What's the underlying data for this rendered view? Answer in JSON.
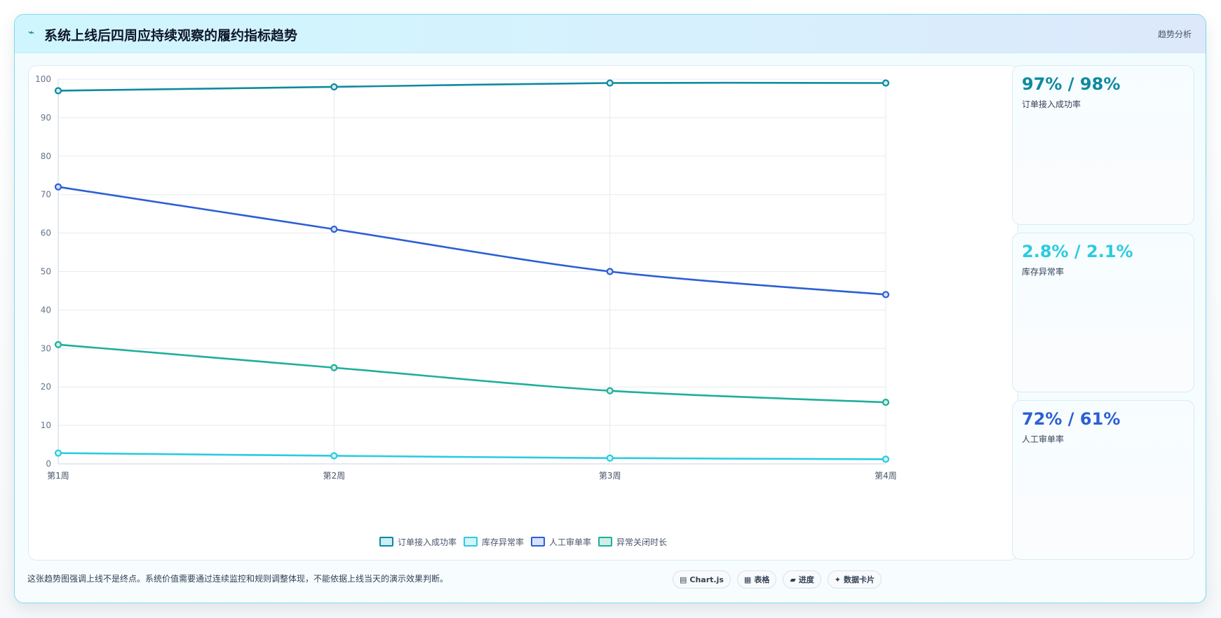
{
  "header": {
    "icon": "pulse-icon",
    "title": "系统上线后四周应持续观察的履约指标趋势",
    "tag": "趋势分析"
  },
  "chart_data": {
    "type": "line",
    "categories": [
      "第1周",
      "第2周",
      "第3周",
      "第4周"
    ],
    "ylim": [
      0,
      100
    ],
    "yticks": [
      0,
      10,
      20,
      30,
      40,
      50,
      60,
      70,
      80,
      90,
      100
    ],
    "grid": true,
    "legend_position": "bottom",
    "series": [
      {
        "name": "订单接入成功率",
        "color": "#0e8a9e",
        "fill": "#cdeef3",
        "values": [
          97,
          98,
          99,
          99
        ]
      },
      {
        "name": "库存异常率",
        "color": "#2ccbe0",
        "fill": "#d2f5fa",
        "values": [
          2.8,
          2.1,
          1.5,
          1.2
        ]
      },
      {
        "name": "人工审单率",
        "color": "#2d5fd4",
        "fill": "#d8e2f8",
        "values": [
          72,
          61,
          50,
          44
        ]
      },
      {
        "name": "异常关闭时长",
        "color": "#1fae9b",
        "fill": "#cfeee9",
        "values": [
          31,
          25,
          19,
          16
        ]
      }
    ]
  },
  "stats": [
    {
      "value": "97% / 98%",
      "label": "订单接入成功率",
      "color": "#0e8a9e"
    },
    {
      "value": "2.8% / 2.1%",
      "label": "库存异常率",
      "color": "#2ccbe0"
    },
    {
      "value": "72% / 61%",
      "label": "人工审单率",
      "color": "#2d5fd4"
    }
  ],
  "footnote": "这张趋势图强调上线不是终点。系统价值需要通过连续监控和规则调整体现，不能依据上线当天的演示效果判断。",
  "chips": [
    {
      "icon": "chart-icon",
      "glyph": "▤",
      "label": "Chart.js"
    },
    {
      "icon": "table-icon",
      "glyph": "▦",
      "label": "表格"
    },
    {
      "icon": "progress-icon",
      "glyph": "▰",
      "label": "进度"
    },
    {
      "icon": "sparkle-icon",
      "glyph": "✦",
      "label": "数据卡片"
    }
  ]
}
